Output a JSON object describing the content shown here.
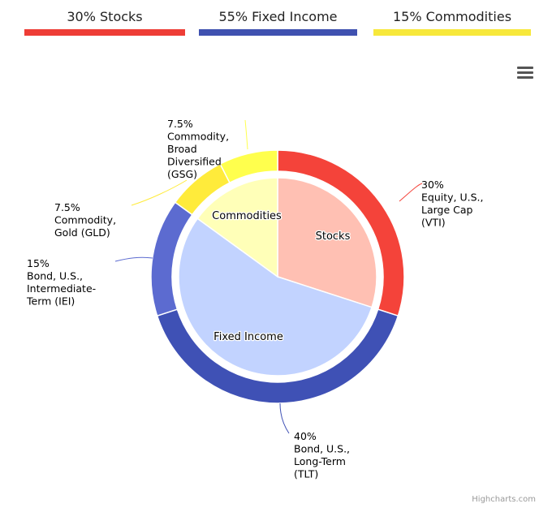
{
  "tabs": [
    {
      "label": "30% Stocks",
      "color": "#ee3d36"
    },
    {
      "label": "55% Fixed Income",
      "color": "#3f51b0"
    },
    {
      "label": "15% Commodities",
      "color": "#f7e83b"
    }
  ],
  "menu": {
    "icon": "hamburger-menu-icon"
  },
  "credit": "Highcharts.com",
  "chart_data": {
    "type": "pie",
    "subtype": "donut-with-inner-pie",
    "inner": {
      "categories": [
        "Stocks",
        "Fixed Income",
        "Commodities"
      ],
      "values": [
        30,
        55,
        15
      ],
      "colors": [
        "#ffc0b3",
        "#c2d3ff",
        "#ffffb8"
      ]
    },
    "outer": {
      "categories": [
        "Equity, U.S., Large Cap (VTI)",
        "Bond, U.S., Long-Term (TLT)",
        "Bond, U.S., Intermediate-Term (IEI)",
        "Commodity, Gold (GLD)",
        "Commodity, Broad Diversified (GSG)"
      ],
      "values": [
        30,
        40,
        15,
        7.5,
        7.5
      ],
      "colors": [
        "#f4433a",
        "#3f51b5",
        "#5c6bd0",
        "#ffeb3b",
        "#ffff4d"
      ],
      "labels": [
        [
          "30%",
          "Equity, U.S.,",
          "Large Cap",
          "(VTI)"
        ],
        [
          "40%",
          "Bond, U.S.,",
          "Long-Term",
          "(TLT)"
        ],
        [
          "15%",
          "Bond, U.S.,",
          "Intermediate-",
          "Term (IEI)"
        ],
        [
          "7.5%",
          "Commodity,",
          "Gold (GLD)"
        ],
        [
          "7.5%",
          "Commodity,",
          "Broad",
          "Diversified",
          "(GSG)"
        ]
      ]
    }
  }
}
